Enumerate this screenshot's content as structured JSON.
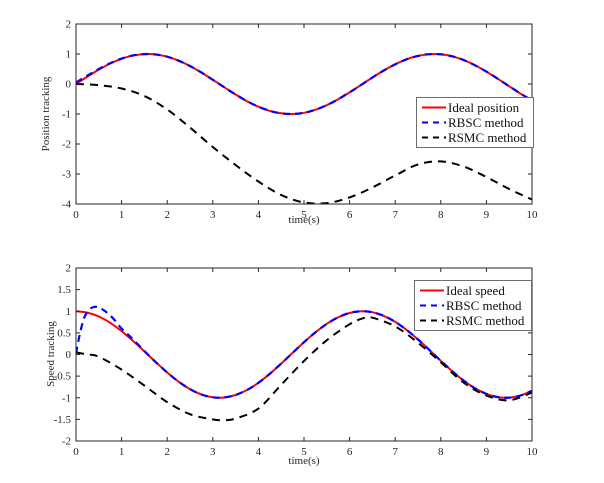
{
  "figure": {
    "background": "#ffffff"
  },
  "colors": {
    "ideal": "#ff0000",
    "rbsc": "#0000ff",
    "rsmc": "#000000",
    "axis": "#262626"
  },
  "chart_data": [
    {
      "type": "line",
      "title": "",
      "xlabel": "time(s)",
      "ylabel": "Position tracking",
      "xlim": [
        0,
        10
      ],
      "ylim": [
        -4,
        2
      ],
      "xticks": [
        0,
        1,
        2,
        3,
        4,
        5,
        6,
        7,
        8,
        9,
        10
      ],
      "yticks": [
        -4,
        -3,
        -2,
        -1,
        0,
        1,
        2
      ],
      "grid": false,
      "legend_position": "inside-right",
      "series": [
        {
          "name": "Ideal position",
          "color": "#ff0000",
          "style": "solid",
          "dash": "",
          "width": 2,
          "x": [
            0,
            0.25,
            0.5,
            0.75,
            1,
            1.25,
            1.5,
            1.75,
            2,
            2.25,
            2.5,
            2.75,
            3,
            3.25,
            3.5,
            3.75,
            4,
            4.25,
            4.5,
            4.75,
            5,
            5.25,
            5.5,
            5.75,
            6,
            6.25,
            6.5,
            6.75,
            7,
            7.25,
            7.5,
            7.75,
            8,
            8.25,
            8.5,
            8.75,
            9,
            9.25,
            9.5,
            9.75,
            10
          ],
          "y": [
            0,
            0.247,
            0.479,
            0.682,
            0.841,
            0.949,
            0.997,
            0.984,
            0.909,
            0.778,
            0.599,
            0.382,
            0.141,
            -0.108,
            -0.351,
            -0.572,
            -0.757,
            -0.895,
            -0.978,
            -0.999,
            -0.959,
            -0.859,
            -0.706,
            -0.508,
            -0.279,
            -0.033,
            0.215,
            0.45,
            0.657,
            0.823,
            0.938,
            0.995,
            0.989,
            0.923,
            0.799,
            0.625,
            0.412,
            0.175,
            -0.075,
            -0.323,
            -0.544
          ]
        },
        {
          "name": "RBSC method",
          "color": "#0000ff",
          "style": "dashed",
          "dash": "7 5",
          "width": 2.2,
          "x": [
            0,
            0.25,
            0.5,
            0.75,
            1,
            1.25,
            1.5,
            1.75,
            2,
            2.25,
            2.5,
            2.75,
            3,
            3.25,
            3.5,
            3.75,
            4,
            4.25,
            4.5,
            4.75,
            5,
            5.25,
            5.5,
            5.75,
            6,
            6.25,
            6.5,
            6.75,
            7,
            7.25,
            7.5,
            7.75,
            8,
            8.25,
            8.5,
            8.75,
            9,
            9.25,
            9.5,
            9.75,
            10
          ],
          "y": [
            0.05,
            0.28,
            0.5,
            0.69,
            0.848,
            0.952,
            0.998,
            0.984,
            0.909,
            0.778,
            0.599,
            0.382,
            0.141,
            -0.108,
            -0.351,
            -0.572,
            -0.757,
            -0.895,
            -0.978,
            -0.999,
            -0.959,
            -0.859,
            -0.706,
            -0.508,
            -0.279,
            -0.033,
            0.215,
            0.45,
            0.657,
            0.823,
            0.938,
            0.995,
            0.989,
            0.923,
            0.799,
            0.625,
            0.412,
            0.175,
            -0.075,
            -0.323,
            -0.544
          ]
        },
        {
          "name": "RSMC method",
          "color": "#000000",
          "style": "dashed",
          "dash": "8 6",
          "width": 2,
          "x": [
            0,
            0.5,
            1,
            1.5,
            2,
            2.5,
            3,
            3.5,
            4,
            4.5,
            5,
            5.5,
            6,
            6.5,
            7,
            7.5,
            8,
            8.5,
            9,
            9.5,
            10
          ],
          "y": [
            0,
            -0.04,
            -0.15,
            -0.4,
            -0.85,
            -1.45,
            -2.1,
            -2.7,
            -3.25,
            -3.7,
            -3.95,
            -3.97,
            -3.78,
            -3.45,
            -3.05,
            -2.68,
            -2.58,
            -2.75,
            -3.1,
            -3.5,
            -3.85
          ]
        }
      ]
    },
    {
      "type": "line",
      "title": "",
      "xlabel": "time(s)",
      "ylabel": "Speed tracking",
      "xlim": [
        0,
        10
      ],
      "ylim": [
        -2,
        2
      ],
      "xticks": [
        0,
        1,
        2,
        3,
        4,
        5,
        6,
        7,
        8,
        9,
        10
      ],
      "yticks": [
        -2,
        -1.5,
        -1,
        -0.5,
        0,
        0.5,
        1,
        1.5,
        2
      ],
      "grid": false,
      "legend_position": "inside-top-right",
      "series": [
        {
          "name": "Ideal speed",
          "color": "#ff0000",
          "style": "solid",
          "dash": "",
          "width": 2,
          "x": [
            0,
            0.25,
            0.5,
            0.75,
            1,
            1.25,
            1.5,
            1.75,
            2,
            2.25,
            2.5,
            2.75,
            3,
            3.25,
            3.5,
            3.75,
            4,
            4.25,
            4.5,
            4.75,
            5,
            5.25,
            5.5,
            5.75,
            6,
            6.25,
            6.5,
            6.75,
            7,
            7.25,
            7.5,
            7.75,
            8,
            8.25,
            8.5,
            8.75,
            9,
            9.25,
            9.5,
            9.75,
            10
          ],
          "y": [
            1,
            0.969,
            0.878,
            0.732,
            0.54,
            0.315,
            0.071,
            -0.178,
            -0.416,
            -0.628,
            -0.801,
            -0.924,
            -0.99,
            -0.994,
            -0.936,
            -0.821,
            -0.654,
            -0.446,
            -0.211,
            0.038,
            0.284,
            0.512,
            0.709,
            0.861,
            0.96,
            1,
            0.977,
            0.893,
            0.754,
            0.568,
            0.347,
            0.103,
            -0.146,
            -0.386,
            -0.602,
            -0.781,
            -0.911,
            -0.985,
            -0.997,
            -0.948,
            -0.839
          ]
        },
        {
          "name": "RBSC method",
          "color": "#0000ff",
          "style": "dashed",
          "dash": "7 5",
          "width": 2.2,
          "x": [
            0,
            0.05,
            0.1,
            0.15,
            0.2,
            0.3,
            0.4,
            0.5,
            0.6,
            0.7,
            0.8,
            0.9,
            1,
            1.25,
            1.5,
            1.75,
            2,
            2.25,
            2.5,
            2.75,
            3,
            3.25,
            3.5,
            3.75,
            4,
            4.25,
            4.5,
            4.75,
            5,
            5.25,
            5.5,
            5.75,
            6,
            6.25,
            6.5,
            6.75,
            7,
            7.25,
            7.5,
            7.75,
            8,
            8.25,
            8.5,
            8.75,
            9,
            9.25,
            9.5,
            9.75,
            10
          ],
          "y": [
            0.02,
            0.3,
            0.55,
            0.75,
            0.9,
            1.05,
            1.1,
            1.09,
            1.03,
            0.95,
            0.85,
            0.73,
            0.6,
            0.35,
            0.08,
            -0.178,
            -0.416,
            -0.628,
            -0.801,
            -0.924,
            -0.99,
            -0.994,
            -0.936,
            -0.821,
            -0.654,
            -0.446,
            -0.211,
            0.038,
            0.284,
            0.512,
            0.709,
            0.861,
            0.96,
            1,
            0.977,
            0.893,
            0.754,
            0.568,
            0.347,
            0.103,
            -0.146,
            -0.386,
            -0.602,
            -0.781,
            -0.911,
            -0.985,
            -0.997,
            -0.948,
            -0.839
          ]
        },
        {
          "name": "RSMC method",
          "color": "#000000",
          "style": "dashed",
          "dash": "8 6",
          "width": 2,
          "x": [
            0,
            0.25,
            0.5,
            1,
            1.5,
            2,
            2.5,
            3,
            3.25,
            3.5,
            4,
            4.5,
            5,
            5.5,
            6,
            6.3,
            6.5,
            7,
            7.5,
            8,
            8.5,
            9,
            9.5,
            10
          ],
          "y": [
            0.05,
            0,
            -0.05,
            -0.35,
            -0.72,
            -1.1,
            -1.38,
            -1.5,
            -1.52,
            -1.48,
            -1.25,
            -0.7,
            -0.15,
            0.33,
            0.7,
            0.84,
            0.85,
            0.65,
            0.27,
            -0.18,
            -0.65,
            -0.95,
            -1.06,
            -0.88
          ]
        }
      ]
    }
  ]
}
